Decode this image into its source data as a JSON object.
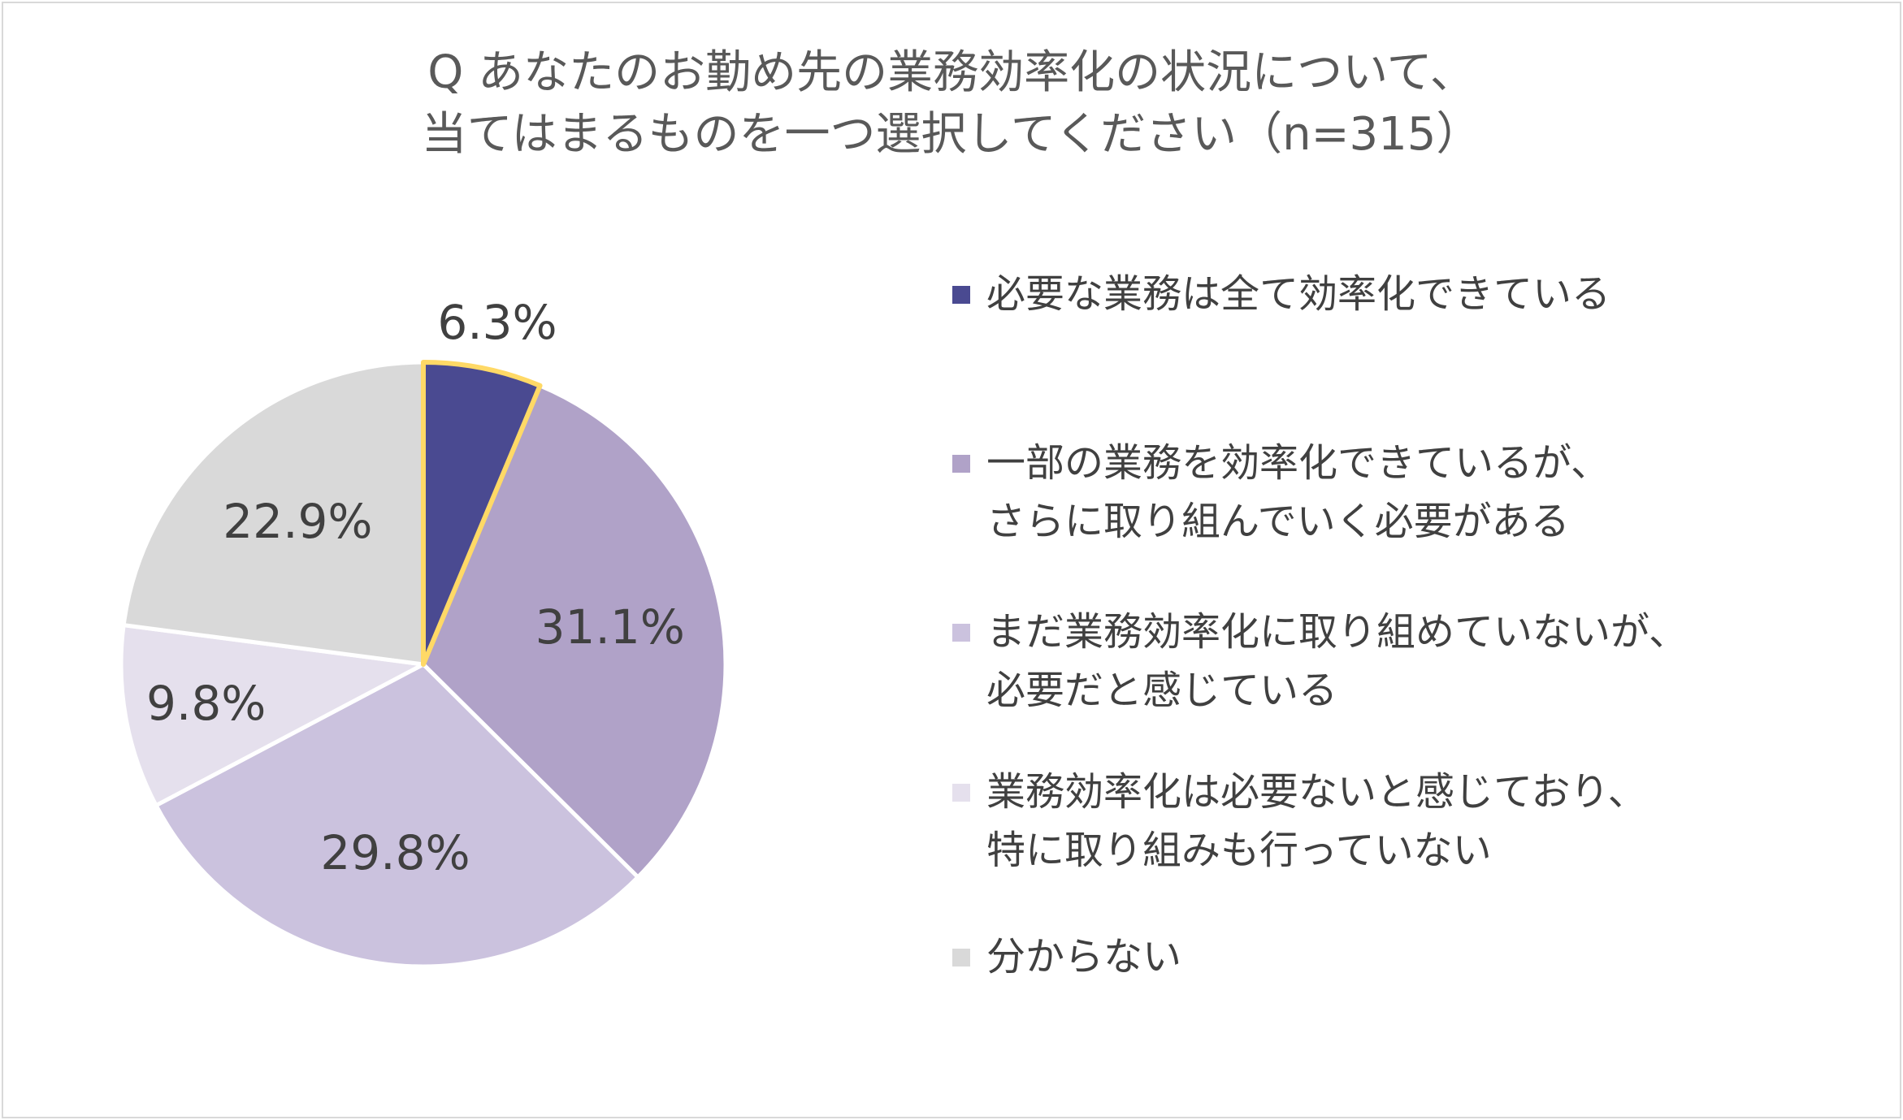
{
  "title": {
    "line1": "Q あなたのお勤め先の業務効率化の状況について、",
    "line2": "当てはまるものを一つ選択してください（n=315）"
  },
  "chart_data": {
    "type": "pie",
    "categories": [
      "必要な業務は全て効率化できている",
      "一部の業務を効率化できているが、さらに取り組んでいく必要がある",
      "まだ業務効率化に取り組めていないが、必要だと感じている",
      "業務効率化は必要ないと感じており、特に取り組みも行っていない",
      "分からない"
    ],
    "values": [
      6.3,
      31.1,
      29.8,
      9.8,
      22.9
    ],
    "data_labels": [
      "6.3%",
      "31.1%",
      "29.8%",
      "9.8%",
      "22.9%"
    ],
    "colors": [
      "#4a4a91",
      "#b0a2c8",
      "#cbc2de",
      "#e5e0ed",
      "#d9d9d9"
    ],
    "highlight_color": "#ffd966",
    "highlighted_index": 0,
    "legend_position": "right"
  },
  "legend": [
    {
      "lines": [
        "必要な業務は全て効率化できている"
      ]
    },
    {
      "lines": [
        "一部の業務を効率化できているが、",
        "さらに取り組んでいく必要がある"
      ]
    },
    {
      "lines": [
        "まだ業務効率化に取り組めていないが、",
        "必要だと感じている"
      ]
    },
    {
      "lines": [
        "業務効率化は必要ないと感じており、",
        "特に取り組みも行っていない"
      ]
    },
    {
      "lines": [
        "分からない"
      ]
    }
  ]
}
